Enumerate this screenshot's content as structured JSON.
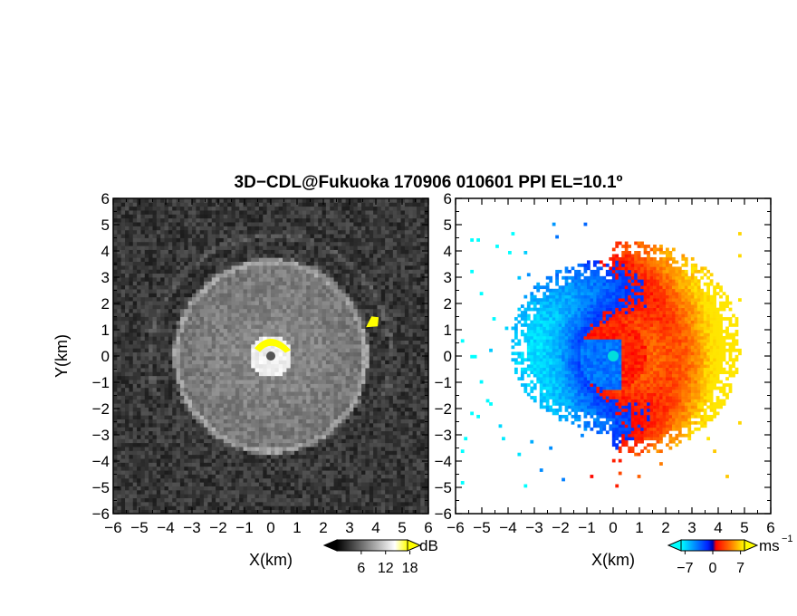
{
  "figure": {
    "title": "3D−CDL@Fukuoka 170906 010601 PPI EL=10.1º"
  },
  "chart_data": [
    {
      "type": "heatmap",
      "panel": "reflectivity",
      "xlabel": "X(km)",
      "ylabel": "Y(km)",
      "xlim": [
        -6,
        6
      ],
      "ylim": [
        -6,
        6
      ],
      "x_ticks": [
        "−6",
        "−5",
        "−4",
        "−3",
        "−2",
        "−1",
        "0",
        "1",
        "2",
        "3",
        "4",
        "5",
        "6"
      ],
      "y_ticks": [
        "−6",
        "−5",
        "−4",
        "−3",
        "−2",
        "−1",
        "0",
        "1",
        "2",
        "3",
        "4",
        "5",
        "6"
      ],
      "colorbar": {
        "unit": "dB",
        "ticks": [
          "6",
          "12",
          "18"
        ],
        "range": [
          0,
          21
        ],
        "colors": [
          "#000000",
          "#ffffff",
          "#ffff00"
        ]
      },
      "features": [
        {
          "name": "bright ring",
          "x_center": 0,
          "y_center": 0,
          "radius_km": 3.6
        },
        {
          "name": "saturated echo near radar",
          "x": 0.0,
          "y": 0.5,
          "color": "#ffff00"
        },
        {
          "name": "saturated target",
          "x": 3.9,
          "y": 1.3,
          "color": "#ffff00"
        }
      ]
    },
    {
      "type": "heatmap",
      "panel": "doppler velocity",
      "xlabel": "X(km)",
      "xlim": [
        -6,
        6
      ],
      "ylim": [
        -6,
        6
      ],
      "x_ticks": [
        "−6",
        "−5",
        "−4",
        "−3",
        "−2",
        "−1",
        "0",
        "1",
        "2",
        "3",
        "4",
        "5",
        "6"
      ],
      "y_ticks": [
        "−6",
        "−5",
        "−4",
        "−3",
        "−2",
        "−1",
        "0",
        "1",
        "2",
        "3",
        "4",
        "5",
        "6"
      ],
      "colorbar": {
        "unit": "ms",
        "unit_exponent": "−1",
        "ticks": [
          "−7",
          "0",
          "7"
        ],
        "range": [
          -8,
          8
        ],
        "colors": [
          "#00ffff",
          "#0000ff",
          "#ff0000",
          "#ffff00"
        ]
      },
      "features": [
        {
          "name": "radar location",
          "x": 0,
          "y": 0,
          "color": "#00dddd"
        }
      ]
    }
  ]
}
